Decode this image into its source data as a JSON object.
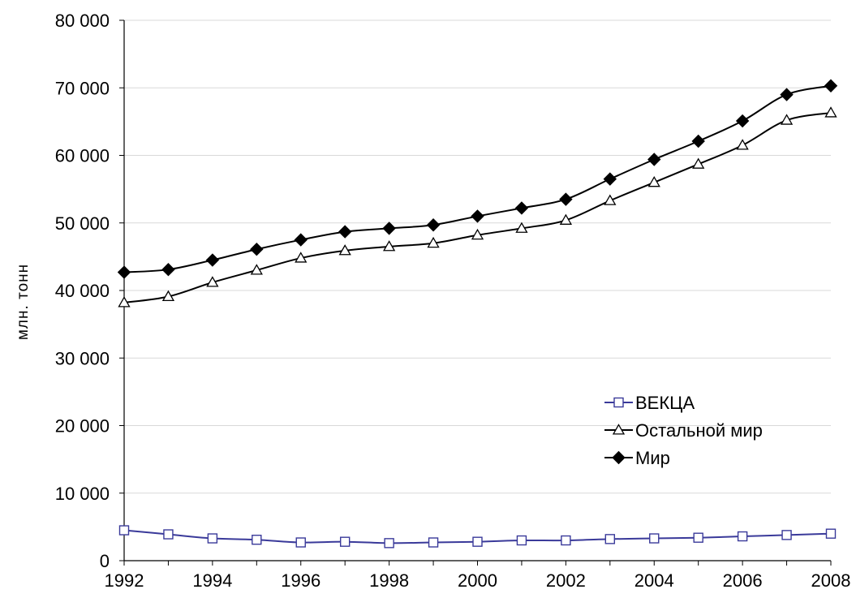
{
  "chart_data": {
    "type": "line",
    "title": "",
    "xlabel": "",
    "ylabel": "млн. тонн",
    "ylim": [
      0,
      80000
    ],
    "grid": true,
    "legend_position": "bottom-right",
    "x": [
      1992,
      1993,
      1994,
      1995,
      1996,
      1997,
      1998,
      1999,
      2000,
      2001,
      2002,
      2003,
      2004,
      2005,
      2006,
      2007,
      2008
    ],
    "x_tick_labels": [
      "1992",
      "1994",
      "1996",
      "1998",
      "2000",
      "2002",
      "2004",
      "2006",
      "2008"
    ],
    "y_ticks": [
      0,
      10000,
      20000,
      30000,
      40000,
      50000,
      60000,
      70000,
      80000
    ],
    "y_tick_labels": [
      "0",
      "10 000",
      "20 000",
      "30 000",
      "40 000",
      "50 000",
      "60 000",
      "70 000",
      "80 000"
    ],
    "series": [
      {
        "name": "ВЕКЦА",
        "color": "#3a3a9a",
        "marker": "square-open",
        "values": [
          4500,
          3900,
          3300,
          3100,
          2700,
          2800,
          2600,
          2700,
          2800,
          3000,
          3000,
          3200,
          3300,
          3400,
          3600,
          3800,
          4000
        ]
      },
      {
        "name": "Остальной мир",
        "color": "#000000",
        "marker": "triangle-open",
        "values": [
          38200,
          39100,
          41200,
          43000,
          44800,
          45900,
          46500,
          47000,
          48200,
          49200,
          50400,
          53300,
          56000,
          58700,
          61500,
          65200,
          66300
        ]
      },
      {
        "name": "Мир",
        "color": "#000000",
        "marker": "diamond-filled",
        "values": [
          42700,
          43100,
          44500,
          46100,
          47500,
          48700,
          49200,
          49700,
          51000,
          52200,
          53500,
          56500,
          59400,
          62100,
          65100,
          69000,
          70300
        ]
      }
    ]
  }
}
